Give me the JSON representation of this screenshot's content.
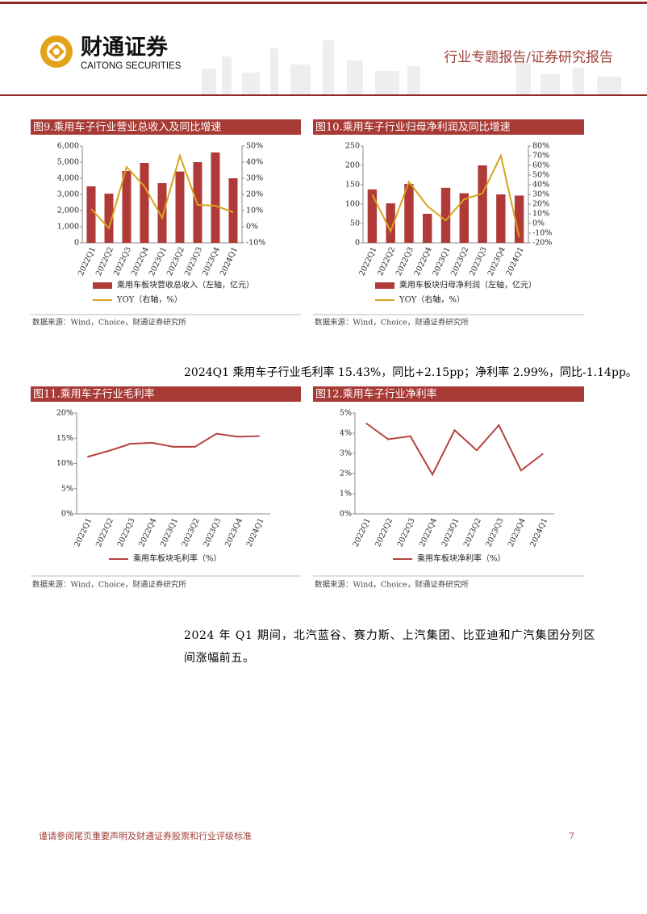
{
  "header": {
    "brand": "财通证券",
    "brand_en": "CAITONG SECURITIES",
    "report_type": "行业专题报告/证券研究报告"
  },
  "chart_data": [
    {
      "type": "combo",
      "title": "图9.乘用车子行业营业总收入及同比增速",
      "categories": [
        "2022Q1",
        "2022Q2",
        "2022Q3",
        "2022Q4",
        "2023Q1",
        "2023Q2",
        "2023Q3",
        "2023Q4",
        "2024Q1"
      ],
      "series": [
        {
          "name": "乘用车板块营收总收入（左轴，亿元）",
          "type": "bar",
          "color": "#b03a37",
          "values": [
            3500,
            3050,
            4450,
            4950,
            3700,
            4420,
            5000,
            5600,
            4000
          ]
        },
        {
          "name": "YOY（右轴，%）",
          "type": "line",
          "axis": "y2",
          "color": "#d9a31f",
          "values": [
            11,
            -1,
            37,
            25,
            5.5,
            44,
            13.5,
            13,
            9
          ]
        }
      ],
      "ylim": [
        0,
        6000
      ],
      "yticks": [
        0,
        {
          "value": 1000,
          "label": "1,000"
        },
        {
          "value": 2000,
          "label": "2,000"
        },
        {
          "value": 3000,
          "label": "3,000"
        },
        {
          "value": 4000,
          "label": "4,000"
        },
        {
          "value": 5000,
          "label": "5,000"
        },
        {
          "value": 6000,
          "label": "6,000"
        }
      ],
      "y2lim": [
        -10,
        50
      ],
      "y2ticks": [
        {
          "value": -10,
          "label": "-10%"
        },
        {
          "value": 0,
          "label": "0%"
        },
        {
          "value": 10,
          "label": "10%"
        },
        {
          "value": 20,
          "label": "20%"
        },
        {
          "value": 30,
          "label": "30%"
        },
        {
          "value": 40,
          "label": "40%"
        },
        {
          "value": 50,
          "label": "50%"
        }
      ],
      "source": "数据来源：Wind，Choice，财通证券研究所"
    },
    {
      "type": "combo",
      "title": "图10.乘用车子行业归母净利润及同比增速",
      "categories": [
        "2022Q1",
        "2022Q2",
        "2022Q3",
        "2022Q4",
        "2023Q1",
        "2023Q2",
        "2023Q3",
        "2023Q4",
        "2024Q1"
      ],
      "series": [
        {
          "name": "乘用车板块归母净利润（左轴，亿元）",
          "type": "bar",
          "color": "#b03a37",
          "values": [
            138,
            102,
            152,
            75,
            142,
            128,
            200,
            125,
            122
          ]
        },
        {
          "name": "YOY（右轴，%）",
          "type": "line",
          "axis": "y2",
          "color": "#d9a31f",
          "values": [
            30,
            -8,
            43,
            18,
            3,
            25,
            31,
            70,
            -14
          ]
        }
      ],
      "ylim": [
        0,
        250
      ],
      "yticks": [
        0,
        50,
        100,
        150,
        200,
        250
      ],
      "y2lim": [
        -20,
        80
      ],
      "y2ticks": [
        {
          "value": -20,
          "label": "-20%"
        },
        {
          "value": -10,
          "label": "-10%"
        },
        {
          "value": 0,
          "label": "0%"
        },
        {
          "value": 10,
          "label": "10%"
        },
        {
          "value": 20,
          "label": "20%"
        },
        {
          "value": 30,
          "label": "30%"
        },
        {
          "value": 40,
          "label": "40%"
        },
        {
          "value": 50,
          "label": "50%"
        },
        {
          "value": 60,
          "label": "60%"
        },
        {
          "value": 70,
          "label": "70%"
        },
        {
          "value": 80,
          "label": "80%"
        }
      ],
      "source": "数据来源：Wind，Choice，财通证券研究所"
    },
    {
      "type": "line",
      "title": "图11.乘用车子行业毛利率",
      "categories": [
        "2022Q1",
        "2022Q2",
        "2022Q3",
        "2022Q4",
        "2023Q1",
        "2023Q2",
        "2023Q3",
        "2023Q4",
        "2024Q1"
      ],
      "series": [
        {
          "name": "乘用车板块毛利率（%）",
          "type": "line",
          "color": "#b5423f",
          "values": [
            11.3,
            12.5,
            13.9,
            14.1,
            13.3,
            13.3,
            15.9,
            15.3,
            15.43
          ]
        }
      ],
      "ylim": [
        0,
        20
      ],
      "yticks": [
        {
          "value": 0,
          "label": "0%"
        },
        {
          "value": 5,
          "label": "5%"
        },
        {
          "value": 10,
          "label": "10%"
        },
        {
          "value": 15,
          "label": "15%"
        },
        {
          "value": 20,
          "label": "20%"
        }
      ],
      "source": "数据来源：Wind，Choice，财通证券研究所"
    },
    {
      "type": "line",
      "title": "图12.乘用车子行业净利率",
      "categories": [
        "2022Q1",
        "2022Q2",
        "2022Q3",
        "2022Q4",
        "2023Q1",
        "2023Q2",
        "2023Q3",
        "2023Q4",
        "2024Q1"
      ],
      "series": [
        {
          "name": "乘用车板块净利率（%）",
          "type": "line",
          "color": "#b5423f",
          "values": [
            4.5,
            3.7,
            3.85,
            1.95,
            4.15,
            3.15,
            4.4,
            2.15,
            2.99
          ]
        }
      ],
      "ylim": [
        0,
        5
      ],
      "yticks": [
        {
          "value": 0,
          "label": "0%"
        },
        {
          "value": 1,
          "label": "1%"
        },
        {
          "value": 2,
          "label": "2%"
        },
        {
          "value": 3,
          "label": "3%"
        },
        {
          "value": 4,
          "label": "4%"
        },
        {
          "value": 5,
          "label": "5%"
        }
      ],
      "source": "数据来源：Wind，Choice，财通证券研究所"
    }
  ],
  "paragraphs": [
    "2024Q1 乘用车子行业毛利率 15.43%，同比+2.15pp；净利率 2.99%，同比-1.14pp。",
    "2024 年 Q1 期间，北汽蓝谷、赛力斯、上汽集团、比亚迪和广汽集团分列区间涨幅前五。"
  ],
  "footer": {
    "disclaimer": "谨请参阅尾页重要声明及财通证券股票和行业评级标准",
    "page": "7"
  }
}
